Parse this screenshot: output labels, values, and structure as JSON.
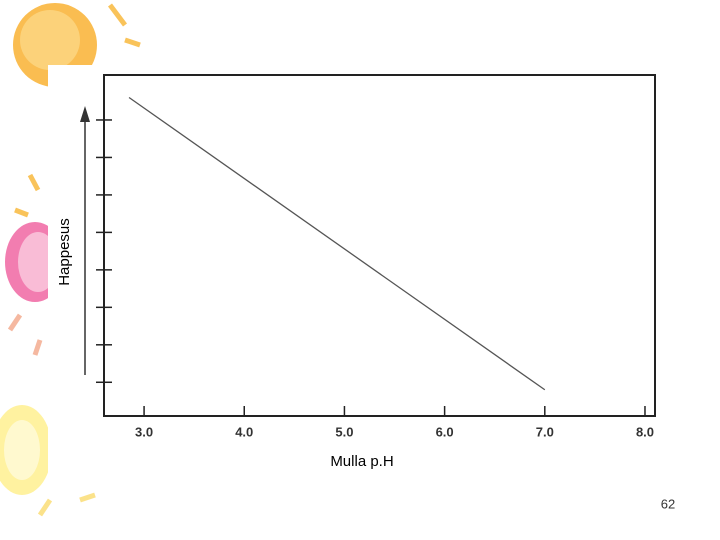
{
  "chart_data": {
    "type": "line",
    "x_label": "Mulla p.H",
    "y_label": "Happesus",
    "x": [
      2.85,
      7.0
    ],
    "series": [
      {
        "values": [
          8.6,
          0.8
        ],
        "color": "#555555"
      }
    ],
    "xlim": [
      2.6,
      8.1
    ],
    "xticks": [
      {
        "value": 3,
        "label": "3.0"
      },
      {
        "value": 4,
        "label": "4.0"
      },
      {
        "value": 5,
        "label": "5.0"
      },
      {
        "value": 6,
        "label": "6.0"
      },
      {
        "value": 7,
        "label": "7.0"
      },
      {
        "value": 8,
        "label": "8.0"
      }
    ],
    "ylim": [
      0.1,
      9.2
    ],
    "yticks": [
      1,
      2,
      3,
      4,
      5,
      6,
      7,
      8
    ]
  },
  "page_number": "62"
}
